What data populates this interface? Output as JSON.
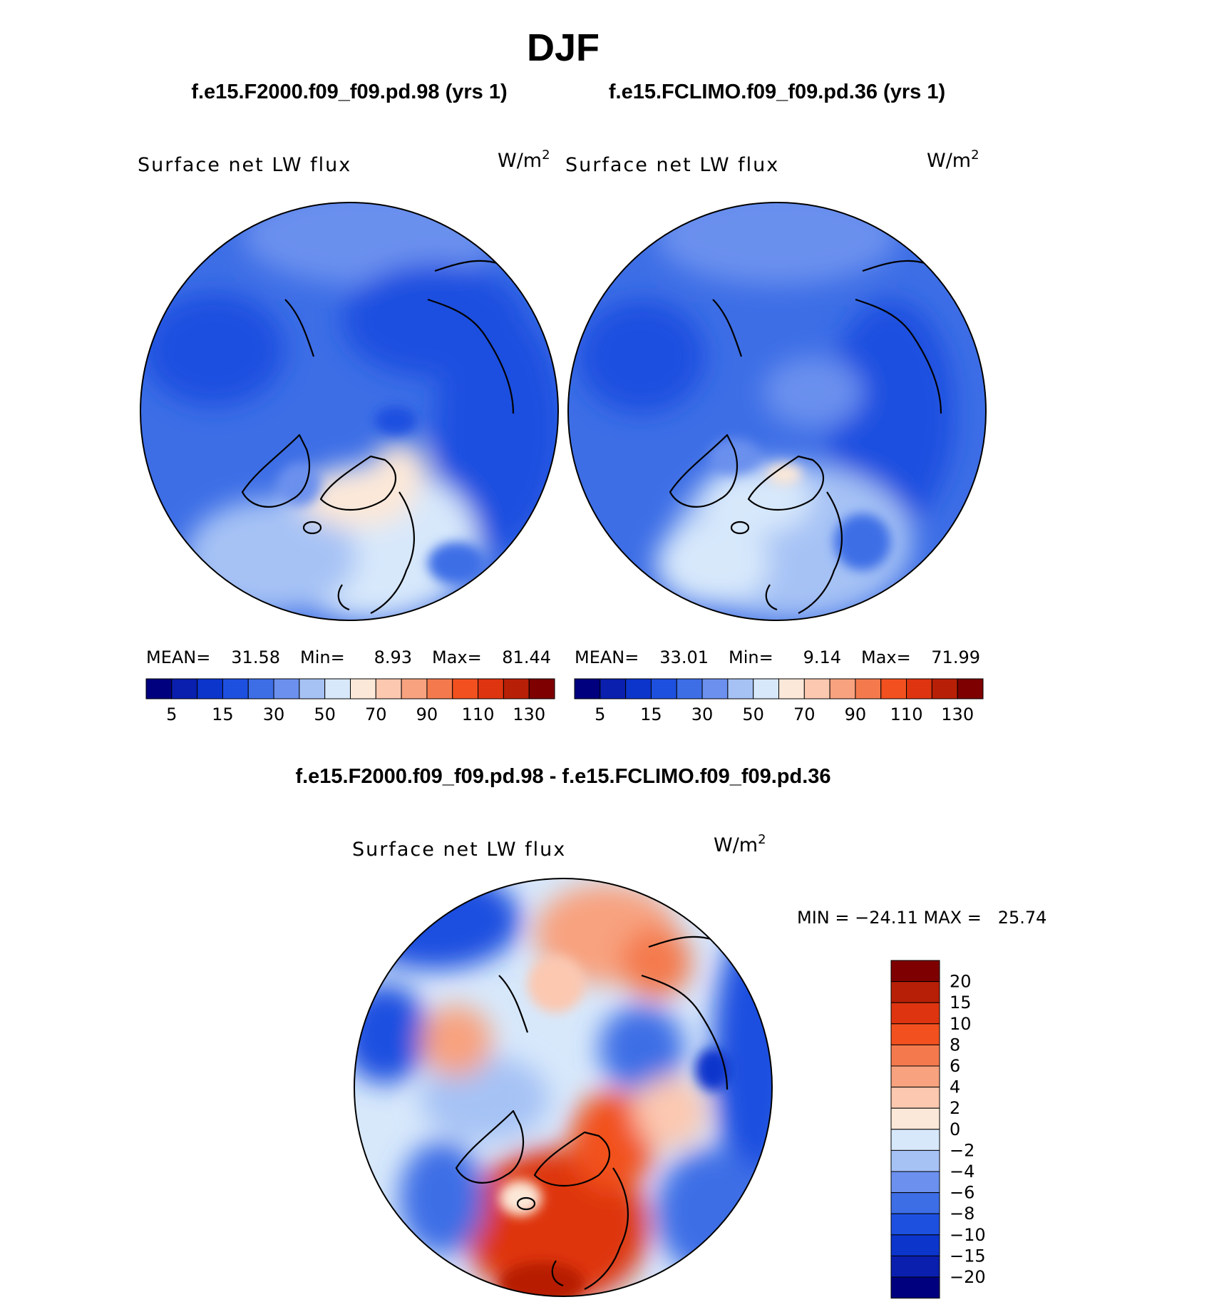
{
  "season": "DJF",
  "case_a": "f.e15.F2000.f09_f09.pd.98 (yrs 1)",
  "case_b": "f.e15.FCLIMO.f09_f09.pd.36 (yrs 1)",
  "diff_title": "f.e15.F2000.f09_f09.pd.98 - f.e15.FCLIMO.f09_f09.pd.36",
  "variable": "Surface net LW flux",
  "units": "W/m",
  "units_exp": "2",
  "panels": [
    {
      "mean_label": "MEAN=",
      "mean": "31.58",
      "min_label": "Min=",
      "min": "8.93",
      "max_label": "Max=",
      "max": "81.44"
    },
    {
      "mean_label": "MEAN=",
      "mean": "33.01",
      "min_label": "Min=",
      "min": "9.14",
      "max_label": "Max=",
      "max": "71.99"
    }
  ],
  "diff_stats": "MIN = −24.11 MAX =   25.74",
  "abs_colorbar": {
    "colors": [
      "#00007f",
      "#0a1fae",
      "#0c35cc",
      "#1e50e0",
      "#3d6ee6",
      "#6b90ee",
      "#a6c2f5",
      "#d7e8fb",
      "#fce8d8",
      "#fcc8b0",
      "#f8a27f",
      "#f47a4d",
      "#f2511f",
      "#de3510",
      "#b71f06",
      "#7e0000"
    ],
    "tick_labels": [
      "5",
      "15",
      "30",
      "50",
      "70",
      "90",
      "110",
      "130"
    ]
  },
  "diff_colorbar": {
    "colors_top_to_bottom": [
      "#7e0000",
      "#b71f06",
      "#de3510",
      "#f2511f",
      "#f47a4d",
      "#f8a27f",
      "#fcc8b0",
      "#fce8d8",
      "#d7e8fb",
      "#a6c2f5",
      "#6b90ee",
      "#3d6ee6",
      "#1e50e0",
      "#0c35cc",
      "#0a1fae",
      "#00007f"
    ],
    "tick_labels": [
      "20",
      "15",
      "10",
      "8",
      "6",
      "4",
      "2",
      "0",
      "−2",
      "−4",
      "−6",
      "−8",
      "−10",
      "−15",
      "−20"
    ]
  },
  "colors": {
    "abs_ocean": "#3d6ee6",
    "abs_land": "#1e50e0",
    "diff_base": "#d7e8fb",
    "coast": "#000000"
  }
}
